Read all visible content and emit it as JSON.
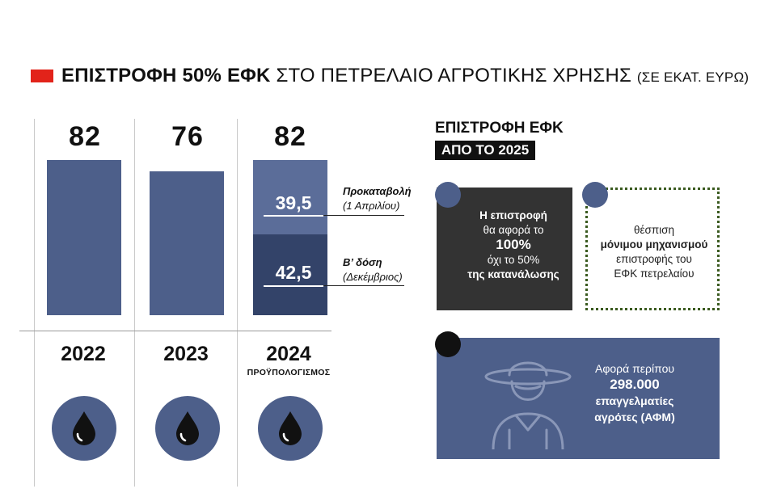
{
  "title": {
    "bold": "ΕΠΙΣΤΡΟΦΗ 50% ΕΦΚ",
    "normal": "ΣΤΟ ΠΕΤΡΕΛΑΙΟ ΑΓΡΟΤΙΚΗΣ ΧΡΗΣΗΣ",
    "unit": "(ΣΕ ΕΚΑΤ. ΕΥΡΩ)"
  },
  "colors": {
    "accent_red": "#e2231a",
    "bar_blue": "#4d5f8a",
    "bar_light": "#5b6d99",
    "bar_dark": "#334369",
    "circle_blue": "#4d5f8a",
    "dark_card": "#333333",
    "green_dots": "#3a5a1f",
    "black": "#111111"
  },
  "chart_data": {
    "type": "bar",
    "categories": [
      "2022",
      "2023",
      "2024"
    ],
    "values": [
      82,
      76,
      82
    ],
    "value_labels": [
      "82",
      "76",
      "82"
    ],
    "ylim": [
      0,
      90
    ],
    "stacked_2024": [
      {
        "value": 39.5,
        "label": "39,5",
        "note_bold": "Προκαταβολή",
        "note": "(1 Απριλίου)"
      },
      {
        "value": 42.5,
        "label": "42,5",
        "note_bold": "Β’ δόση",
        "note": "(Δεκέμβριος)"
      }
    ],
    "sublabel_2024": "ΠΡΟΫΠΟΛΟΓΙΣΜΟΣ",
    "title": "",
    "xlabel": "",
    "ylabel": ""
  },
  "right": {
    "heading": "ΕΠΙΣΤΡΟΦΗ ΕΦΚ",
    "badge": "ΑΠΟ ΤΟ 2025",
    "card1": {
      "line1": "Η επιστροφή",
      "line2": "θα αφορά το",
      "line3": "100%",
      "line4": "όχι το 50%",
      "line5": "της κατανάλωσης"
    },
    "card2": {
      "line1": "θέσπιση",
      "line2": "μόνιμου μηχανισμού",
      "line3": "επιστροφής του",
      "line4": "ΕΦΚ πετρελαίου"
    },
    "card3": {
      "line1": "Αφορά περίπου",
      "line2": "298.000",
      "line3": "επαγγελματίες",
      "line4": "αγρότες (ΑΦΜ)"
    },
    "icons": {
      "drop": "oil-drop-icon",
      "farmer": "farmer-icon"
    }
  }
}
